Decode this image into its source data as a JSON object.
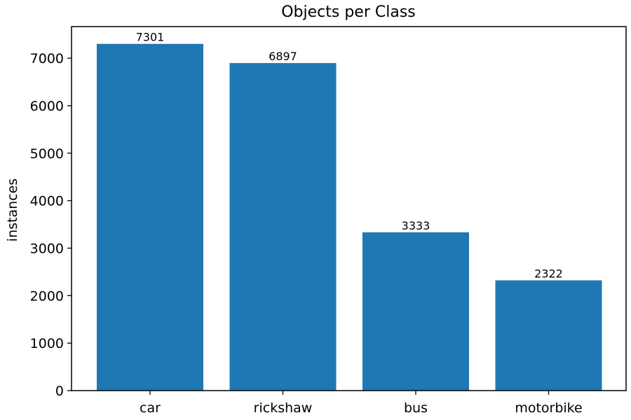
{
  "chart_data": {
    "type": "bar",
    "title": "Objects per Class",
    "xlabel": "",
    "ylabel": "instances",
    "categories": [
      "car",
      "rickshaw",
      "bus",
      "motorbike"
    ],
    "values": [
      7301,
      6897,
      3333,
      2322
    ],
    "data_labels": [
      "7301",
      "6897",
      "3333",
      "2322"
    ],
    "ylim": [
      0,
      7665
    ],
    "yticks": [
      0,
      1000,
      2000,
      3000,
      4000,
      5000,
      6000,
      7000
    ],
    "ytick_labels": [
      "0",
      "1000",
      "2000",
      "3000",
      "4000",
      "5000",
      "6000",
      "7000"
    ],
    "bar_color": "#1f77b4",
    "grid": false,
    "legend": "none"
  }
}
